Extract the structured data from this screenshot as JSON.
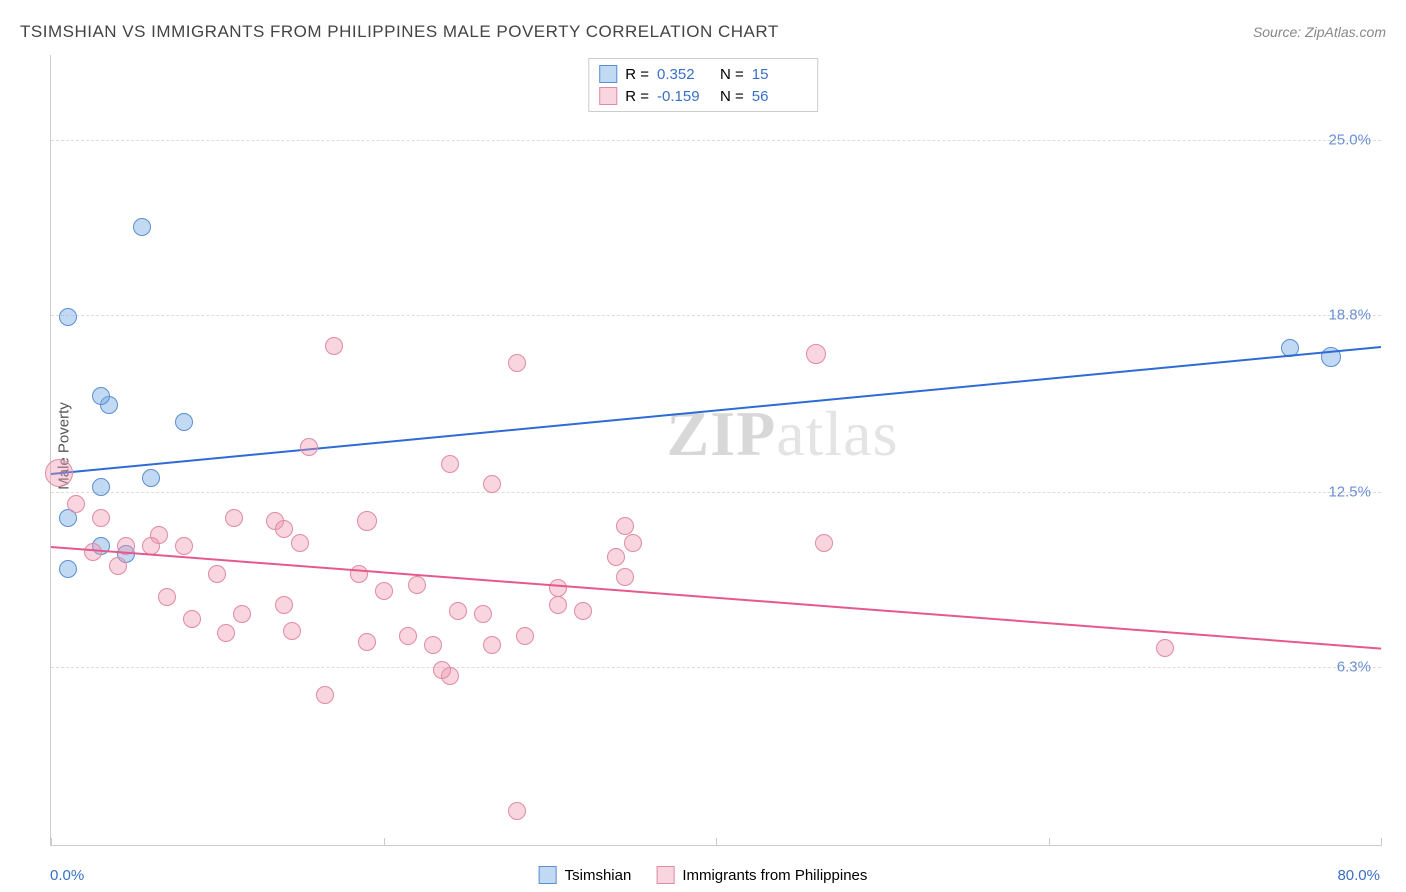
{
  "title": "TSIMSHIAN VS IMMIGRANTS FROM PHILIPPINES MALE POVERTY CORRELATION CHART",
  "source": "Source: ZipAtlas.com",
  "ylabel": "Male Poverty",
  "watermark_bold": "ZIP",
  "watermark_rest": "atlas",
  "chart": {
    "type": "scatter",
    "xlim": [
      0,
      80
    ],
    "ylim": [
      0,
      28
    ],
    "x_start_label": "0.0%",
    "x_end_label": "80.0%",
    "x_label_color": "#3a6fc4",
    "xticks": [
      0,
      20,
      40,
      60,
      80
    ],
    "background_color": "#ffffff",
    "grid_color": "#dddddd",
    "axis_color": "#cccccc",
    "yticks": [
      {
        "value": 6.3,
        "label": "6.3%"
      },
      {
        "value": 12.5,
        "label": "12.5%"
      },
      {
        "value": 18.8,
        "label": "18.8%"
      },
      {
        "value": 25.0,
        "label": "25.0%"
      }
    ],
    "ytick_color": "#6b8fd4"
  },
  "series": [
    {
      "name": "Tsimshian",
      "color_fill": "rgba(120,170,230,0.45)",
      "color_stroke": "#5a8fd0",
      "marker_radius": 9,
      "R": "0.352",
      "N": "15",
      "trend": {
        "x1": 0,
        "y1": 13.2,
        "x2": 80,
        "y2": 17.7,
        "color": "#2e6bd4",
        "width": 2
      },
      "points": [
        {
          "x": 5.5,
          "y": 21.9,
          "r": 9
        },
        {
          "x": 1.0,
          "y": 18.7,
          "r": 9
        },
        {
          "x": 77.0,
          "y": 17.3,
          "r": 10
        },
        {
          "x": 74.5,
          "y": 17.6,
          "r": 9
        },
        {
          "x": 3.5,
          "y": 15.6,
          "r": 9
        },
        {
          "x": 3.0,
          "y": 15.9,
          "r": 9
        },
        {
          "x": 8.0,
          "y": 15.0,
          "r": 9
        },
        {
          "x": 6.0,
          "y": 13.0,
          "r": 9
        },
        {
          "x": 3.0,
          "y": 12.7,
          "r": 9
        },
        {
          "x": 1.0,
          "y": 11.6,
          "r": 9
        },
        {
          "x": 4.5,
          "y": 10.3,
          "r": 9
        },
        {
          "x": 3.0,
          "y": 10.6,
          "r": 9
        },
        {
          "x": 1.0,
          "y": 9.8,
          "r": 9
        }
      ]
    },
    {
      "name": "Immigrants from Philippines",
      "color_fill": "rgba(240,150,175,0.4)",
      "color_stroke": "#e08aa5",
      "marker_radius": 9,
      "R": "-0.159",
      "N": "56",
      "trend": {
        "x1": 0,
        "y1": 10.6,
        "x2": 80,
        "y2": 7.0,
        "color": "#e45a8d",
        "width": 2
      },
      "points": [
        {
          "x": 17.0,
          "y": 17.7,
          "r": 9
        },
        {
          "x": 28.0,
          "y": 17.1,
          "r": 9
        },
        {
          "x": 46.0,
          "y": 17.4,
          "r": 10
        },
        {
          "x": 0.5,
          "y": 13.2,
          "r": 14
        },
        {
          "x": 15.5,
          "y": 14.1,
          "r": 9
        },
        {
          "x": 24.0,
          "y": 13.5,
          "r": 9
        },
        {
          "x": 26.5,
          "y": 12.8,
          "r": 9
        },
        {
          "x": 1.5,
          "y": 12.1,
          "r": 9
        },
        {
          "x": 3.0,
          "y": 11.6,
          "r": 9
        },
        {
          "x": 11.0,
          "y": 11.6,
          "r": 9
        },
        {
          "x": 13.5,
          "y": 11.5,
          "r": 9
        },
        {
          "x": 19.0,
          "y": 11.5,
          "r": 10
        },
        {
          "x": 6.5,
          "y": 11.0,
          "r": 9
        },
        {
          "x": 6.0,
          "y": 10.6,
          "r": 9
        },
        {
          "x": 2.5,
          "y": 10.4,
          "r": 9
        },
        {
          "x": 4.5,
          "y": 10.6,
          "r": 9
        },
        {
          "x": 8.0,
          "y": 10.6,
          "r": 9
        },
        {
          "x": 15.0,
          "y": 10.7,
          "r": 9
        },
        {
          "x": 35.0,
          "y": 10.7,
          "r": 9
        },
        {
          "x": 46.5,
          "y": 10.7,
          "r": 9
        },
        {
          "x": 34.0,
          "y": 10.2,
          "r": 9
        },
        {
          "x": 4.0,
          "y": 9.9,
          "r": 9
        },
        {
          "x": 10.0,
          "y": 9.6,
          "r": 9
        },
        {
          "x": 18.5,
          "y": 9.6,
          "r": 9
        },
        {
          "x": 22.0,
          "y": 9.2,
          "r": 9
        },
        {
          "x": 30.5,
          "y": 9.1,
          "r": 9
        },
        {
          "x": 30.5,
          "y": 8.5,
          "r": 9
        },
        {
          "x": 34.5,
          "y": 9.5,
          "r": 9
        },
        {
          "x": 7.0,
          "y": 8.8,
          "r": 9
        },
        {
          "x": 14.0,
          "y": 8.5,
          "r": 9
        },
        {
          "x": 20.0,
          "y": 9.0,
          "r": 9
        },
        {
          "x": 24.5,
          "y": 8.3,
          "r": 9
        },
        {
          "x": 26.0,
          "y": 8.2,
          "r": 9
        },
        {
          "x": 32.0,
          "y": 8.3,
          "r": 9
        },
        {
          "x": 8.5,
          "y": 8.0,
          "r": 9
        },
        {
          "x": 11.5,
          "y": 8.2,
          "r": 9
        },
        {
          "x": 14.5,
          "y": 7.6,
          "r": 9
        },
        {
          "x": 21.5,
          "y": 7.4,
          "r": 9
        },
        {
          "x": 23.0,
          "y": 7.1,
          "r": 9
        },
        {
          "x": 19.0,
          "y": 7.2,
          "r": 9
        },
        {
          "x": 26.5,
          "y": 7.1,
          "r": 9
        },
        {
          "x": 16.5,
          "y": 5.3,
          "r": 9
        },
        {
          "x": 24.0,
          "y": 6.0,
          "r": 9
        },
        {
          "x": 23.5,
          "y": 6.2,
          "r": 9
        },
        {
          "x": 67.0,
          "y": 7.0,
          "r": 9
        },
        {
          "x": 28.0,
          "y": 1.2,
          "r": 9
        },
        {
          "x": 28.5,
          "y": 7.4,
          "r": 9
        },
        {
          "x": 34.5,
          "y": 11.3,
          "r": 9
        },
        {
          "x": 14.0,
          "y": 11.2,
          "r": 9
        },
        {
          "x": 10.5,
          "y": 7.5,
          "r": 9
        }
      ]
    }
  ],
  "legend_top": {
    "R_label": "R =",
    "N_label": "N ="
  },
  "legend_bottom_labels": [
    "Tsimshian",
    "Immigrants from Philippines"
  ]
}
